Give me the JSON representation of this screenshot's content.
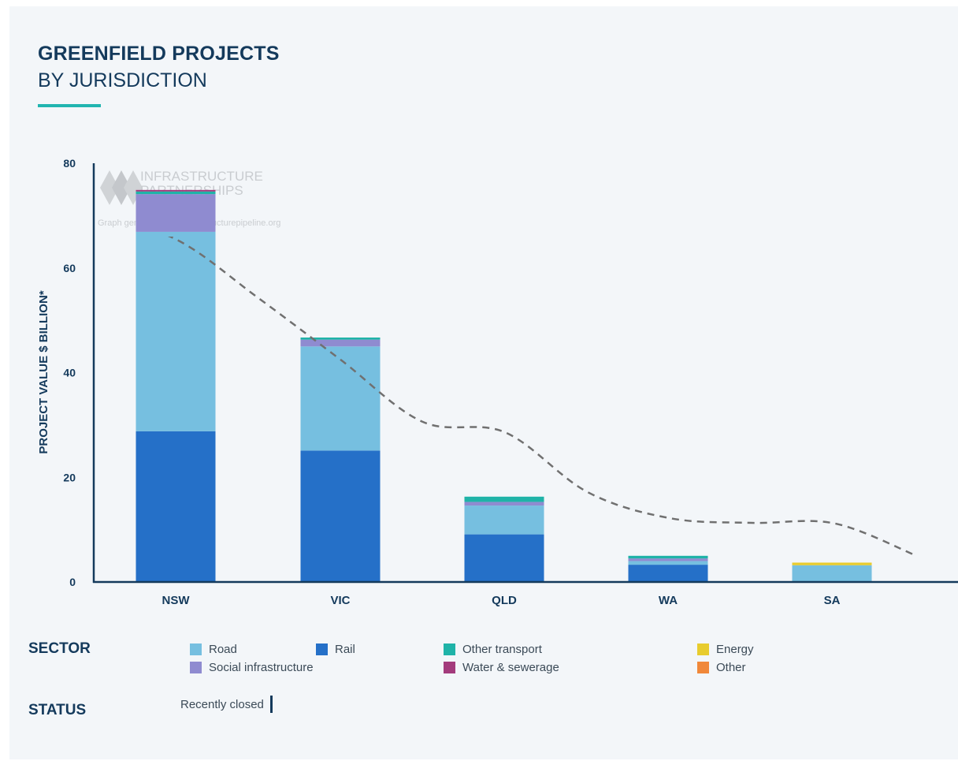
{
  "header": {
    "title": "GREENFIELD PROJECTS",
    "subtitle": "BY JURISDICTION"
  },
  "watermark": {
    "line1": "INFRASTRUCTURE",
    "line2": "PARTNERSHIPS",
    "line3": "Graph generated from infrastructurepipeline.org"
  },
  "legend": {
    "sector_heading": "SECTOR",
    "status_heading": "STATUS",
    "sectors": [
      {
        "label": "Road",
        "color": "#76bfe0"
      },
      {
        "label": "Rail",
        "color": "#2570c8"
      },
      {
        "label": "Other transport",
        "color": "#1fb3a8"
      },
      {
        "label": "Energy",
        "color": "#e8cc2e"
      },
      {
        "label": "Social infrastructure",
        "color": "#8f8bd0"
      },
      {
        "label": "Water & sewerage",
        "color": "#a33b7c"
      },
      {
        "label": "Other",
        "color": "#f0883a"
      }
    ],
    "status_items": [
      {
        "label": "Recently closed"
      }
    ]
  },
  "chart_data": {
    "type": "bar",
    "stacked": true,
    "title": "GREENFIELD PROJECTS BY JURISDICTION",
    "ylabel": "PROJECT VALUE $ BILLION*",
    "xlabel": "",
    "ylim": [
      0,
      80
    ],
    "yticks": [
      0,
      20,
      40,
      60,
      80
    ],
    "categories": [
      "NSW",
      "VIC",
      "QLD",
      "WA",
      "SA"
    ],
    "series": [
      {
        "name": "Rail",
        "color": "#2570c8",
        "values": [
          28.8,
          25.1,
          9.1,
          3.3,
          0
        ]
      },
      {
        "name": "Road",
        "color": "#76bfe0",
        "values": [
          38.1,
          19.9,
          5.5,
          0.7,
          3.2
        ]
      },
      {
        "name": "Social infrastructure",
        "color": "#8f8bd0",
        "values": [
          7.2,
          1.3,
          0.7,
          0.5,
          0
        ]
      },
      {
        "name": "Other transport",
        "color": "#1fb3a8",
        "values": [
          0.5,
          0.4,
          1.0,
          0.5,
          0
        ]
      },
      {
        "name": "Water & sewerage",
        "color": "#a33b7c",
        "values": [
          0.3,
          0,
          0,
          0,
          0
        ]
      },
      {
        "name": "Energy",
        "color": "#e8cc2e",
        "values": [
          0,
          0,
          0,
          0,
          0.5
        ]
      },
      {
        "name": "Other",
        "color": "#f0883a",
        "values": [
          0,
          0,
          0,
          0,
          0
        ]
      }
    ],
    "trend_line": {
      "style": "dashed",
      "color": "#707070",
      "x": [
        -0.5,
        0,
        0.5,
        1,
        1.5,
        2,
        2.5,
        3,
        3.5,
        4,
        4.5
      ],
      "values": [
        70,
        65.5,
        54.3,
        42.5,
        30.6,
        28.6,
        17.2,
        12.2,
        11.3,
        11.2,
        5
      ]
    },
    "grid": false,
    "legend_position": "bottom"
  }
}
